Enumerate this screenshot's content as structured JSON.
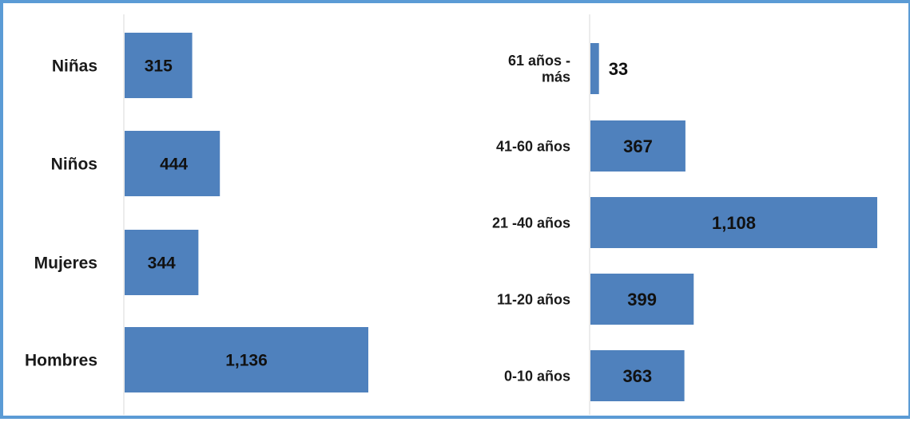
{
  "chart_data": [
    {
      "type": "bar",
      "orientation": "horizontal",
      "categories": [
        "Niñas",
        "Niños",
        "Mujeres",
        "Hombres"
      ],
      "values": [
        315,
        444,
        344,
        1136
      ],
      "value_labels": [
        "315",
        "444",
        "344",
        "1,136"
      ],
      "bar_color": "#4f81bd",
      "xlim": [
        0,
        1150
      ],
      "grid": false,
      "legend": "none"
    },
    {
      "type": "bar",
      "orientation": "horizontal",
      "categories": [
        [
          "61 años -",
          "más"
        ],
        "41-60 años",
        "21 -40  años",
        "11-20 años",
        "0-10 años"
      ],
      "values": [
        33,
        367,
        1108,
        399,
        363
      ],
      "value_labels": [
        "33",
        "367",
        "1,108",
        "399",
        "363"
      ],
      "bar_color": "#4f81bd",
      "xlim": [
        0,
        1125
      ],
      "grid": false,
      "legend": "none"
    }
  ]
}
